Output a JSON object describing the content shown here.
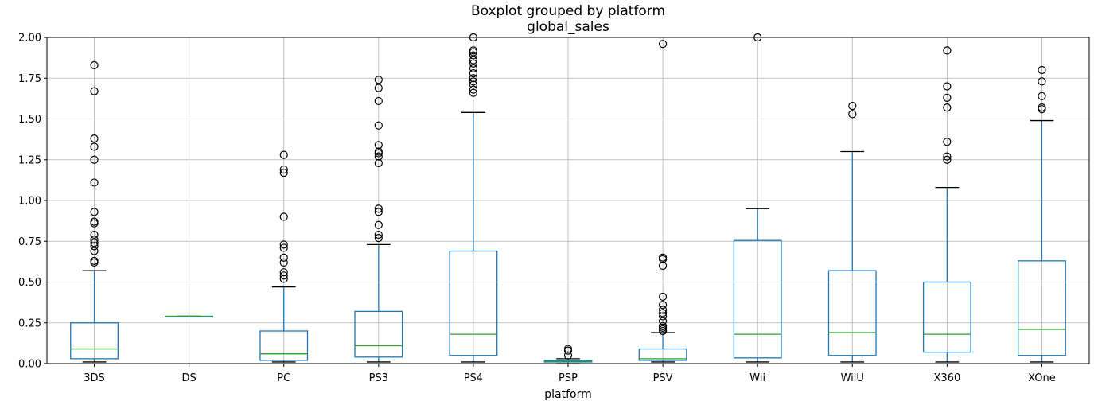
{
  "chart_data": {
    "type": "boxplot",
    "title": "Boxplot grouped by platform",
    "subtitle": "global_sales",
    "xlabel": "platform",
    "ylabel": "",
    "ylim": [
      0,
      2.0
    ],
    "yticks": [
      "0.00",
      "0.25",
      "0.50",
      "0.75",
      "1.00",
      "1.25",
      "1.50",
      "1.75",
      "2.00"
    ],
    "grid": true,
    "colors": {
      "box": "#1f77b4",
      "median": "#2ca02c",
      "whisker_cap": "#000000",
      "outlier": "#000000",
      "grid": "#b0b0b0"
    },
    "categories": [
      "3DS",
      "DS",
      "PC",
      "PS3",
      "PS4",
      "PSP",
      "PSV",
      "Wii",
      "WiiU",
      "X360",
      "XOne"
    ],
    "boxes": [
      {
        "name": "3DS",
        "whislo": 0.01,
        "q1": 0.03,
        "med": 0.09,
        "q3": 0.25,
        "whishi": 0.57,
        "fliers": [
          0.62,
          0.63,
          0.69,
          0.72,
          0.74,
          0.76,
          0.79,
          0.86,
          0.87,
          0.93,
          1.11,
          1.25,
          1.33,
          1.38,
          1.67,
          1.83
        ]
      },
      {
        "name": "DS",
        "whislo": 0.29,
        "q1": 0.29,
        "med": 0.29,
        "q3": 0.29,
        "whishi": 0.29,
        "fliers": []
      },
      {
        "name": "PC",
        "whislo": 0.01,
        "q1": 0.02,
        "med": 0.06,
        "q3": 0.2,
        "whishi": 0.47,
        "fliers": [
          0.52,
          0.54,
          0.56,
          0.62,
          0.65,
          0.71,
          0.73,
          0.9,
          1.17,
          1.19,
          1.28
        ]
      },
      {
        "name": "PS3",
        "whislo": 0.01,
        "q1": 0.04,
        "med": 0.11,
        "q3": 0.32,
        "whishi": 0.73,
        "fliers": [
          0.77,
          0.79,
          0.85,
          0.93,
          0.95,
          1.23,
          1.27,
          1.29,
          1.3,
          1.34,
          1.46,
          1.61,
          1.69,
          1.74
        ]
      },
      {
        "name": "PS4",
        "whislo": 0.01,
        "q1": 0.05,
        "med": 0.18,
        "q3": 0.69,
        "whishi": 1.54,
        "fliers": [
          1.66,
          1.68,
          1.71,
          1.73,
          1.75,
          1.78,
          1.81,
          1.84,
          1.86,
          1.89,
          1.91,
          1.92,
          2.0
        ]
      },
      {
        "name": "PSP",
        "whislo": 0.0,
        "q1": 0.01,
        "med": 0.015,
        "q3": 0.02,
        "whishi": 0.03,
        "fliers": [
          0.05,
          0.08,
          0.09
        ]
      },
      {
        "name": "PSV",
        "whislo": 0.01,
        "q1": 0.02,
        "med": 0.03,
        "q3": 0.09,
        "whishi": 0.19,
        "fliers": [
          0.2,
          0.21,
          0.22,
          0.23,
          0.26,
          0.29,
          0.31,
          0.33,
          0.36,
          0.41,
          0.6,
          0.64,
          0.65,
          1.96
        ]
      },
      {
        "name": "Wii",
        "whislo": 0.01,
        "q1": 0.035,
        "med": 0.18,
        "q3": 0.755,
        "whishi": 0.95,
        "fliers": [
          2.0
        ]
      },
      {
        "name": "WiiU",
        "whislo": 0.01,
        "q1": 0.05,
        "med": 0.19,
        "q3": 0.57,
        "whishi": 1.3,
        "fliers": [
          1.53,
          1.58
        ]
      },
      {
        "name": "X360",
        "whislo": 0.01,
        "q1": 0.07,
        "med": 0.18,
        "q3": 0.5,
        "whishi": 1.08,
        "fliers": [
          1.25,
          1.27,
          1.36,
          1.57,
          1.63,
          1.7,
          1.92
        ]
      },
      {
        "name": "XOne",
        "whislo": 0.01,
        "q1": 0.05,
        "med": 0.21,
        "q3": 0.63,
        "whishi": 1.49,
        "fliers": [
          1.56,
          1.57,
          1.64,
          1.73,
          1.8
        ]
      }
    ]
  }
}
